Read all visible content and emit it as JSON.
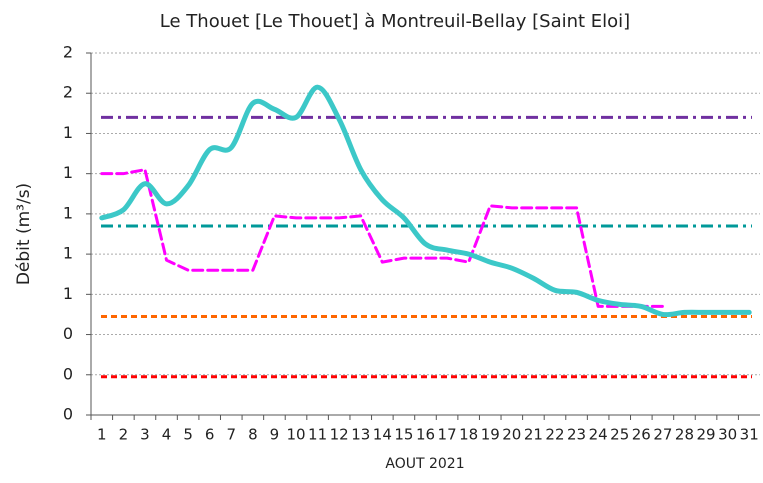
{
  "chart_data": {
    "type": "line",
    "title": "Le Thouet [Le Thouet] à Montreuil-Bellay [Saint Eloi]",
    "x_label": "AOUT 2021",
    "y_label": "Débit (m³/s)",
    "categories": [
      "1",
      "2",
      "3",
      "4",
      "5",
      "6",
      "7",
      "8",
      "9",
      "10",
      "11",
      "12",
      "13",
      "14",
      "15",
      "16",
      "17",
      "18",
      "19",
      "20",
      "21",
      "22",
      "23",
      "24",
      "25",
      "26",
      "27",
      "28",
      "29",
      "30",
      "31"
    ],
    "ylim": [
      0,
      1.8
    ],
    "yticks": [
      0,
      {
        "value": 0.2,
        "label": "0"
      },
      {
        "value": 0.4,
        "label": "0"
      },
      {
        "value": 0.6,
        "label": "1"
      },
      {
        "value": 0.8,
        "label": "1"
      },
      {
        "value": 1.0,
        "label": "1"
      },
      {
        "value": 1.2,
        "label": "1"
      },
      {
        "value": 1.4,
        "label": "1"
      },
      {
        "value": 1.6,
        "label": "2"
      },
      {
        "value": 1.8,
        "label": "2"
      }
    ],
    "grid": true,
    "reference_lines": [
      {
        "value": 1.48,
        "color": "#7030a0"
      },
      {
        "value": 0.94,
        "color": "#009999"
      },
      {
        "value": 0.49,
        "color": "#ff6600"
      },
      {
        "value": 0.19,
        "color": "#ff0000"
      }
    ],
    "series": [
      {
        "color": "#ff00ff",
        "values": [
          1.2,
          1.2,
          1.22,
          0.77,
          0.72,
          0.72,
          0.72,
          0.72,
          0.99,
          0.98,
          0.98,
          0.98,
          0.99,
          0.76,
          0.78,
          0.78,
          0.78,
          0.76,
          1.04,
          1.03,
          1.03,
          1.03,
          1.03,
          0.54,
          0.54,
          0.54,
          0.54,
          null,
          null,
          null,
          null
        ]
      },
      {
        "color": "#3cc8c8",
        "values": [
          0.98,
          1.02,
          1.15,
          1.05,
          1.14,
          1.32,
          1.33,
          1.55,
          1.52,
          1.48,
          1.63,
          1.47,
          1.22,
          1.07,
          0.98,
          0.85,
          0.82,
          0.8,
          0.76,
          0.73,
          0.68,
          0.62,
          0.61,
          0.57,
          0.55,
          0.54,
          0.5,
          0.51,
          0.51,
          0.51,
          0.51
        ]
      }
    ]
  }
}
